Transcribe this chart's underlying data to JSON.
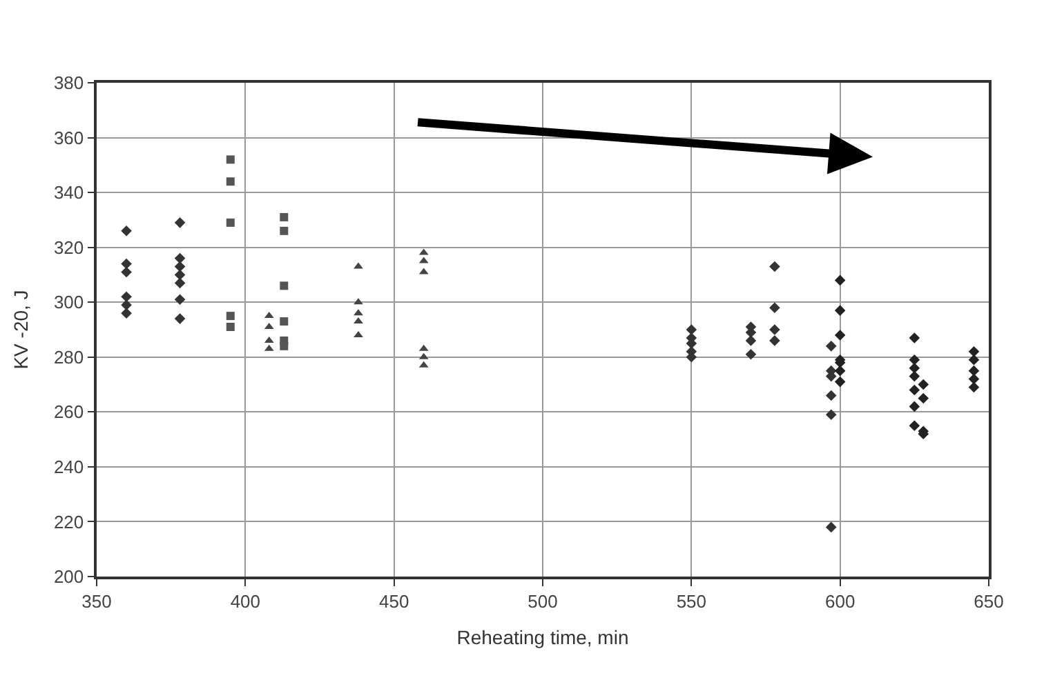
{
  "chart_data": {
    "type": "scatter",
    "xlabel": "Reheating time, min",
    "ylabel": "KV -20, J",
    "xlim": [
      350,
      650
    ],
    "xticks": [
      350,
      400,
      450,
      500,
      550,
      600,
      650
    ],
    "ylim": [
      200,
      380
    ],
    "yticks": [
      200,
      220,
      240,
      260,
      280,
      300,
      320,
      340,
      360,
      380
    ],
    "grid": true,
    "series": [
      {
        "color": "#333333",
        "marker": "diamond",
        "x": [
          360,
          360,
          360,
          360,
          360,
          360,
          378,
          378,
          378,
          378,
          378,
          378,
          378,
          550,
          550,
          550,
          550,
          550,
          570,
          570,
          570,
          570,
          578,
          578,
          578,
          578,
          597,
          597,
          597,
          597,
          597,
          597
        ],
        "values": [
          326,
          314,
          311,
          302,
          299,
          296,
          329,
          316,
          313,
          310,
          307,
          301,
          294,
          290,
          287,
          285,
          282,
          280,
          291,
          289,
          286,
          281,
          313,
          298,
          290,
          286,
          284,
          275,
          273,
          266,
          259,
          218
        ]
      },
      {
        "color": "#222222",
        "marker": "diamond",
        "x": [
          600,
          600,
          600,
          600,
          600,
          600,
          600,
          625,
          625,
          625,
          625,
          628,
          625,
          628,
          625,
          625,
          628,
          628,
          645,
          645,
          645,
          645,
          645
        ],
        "values": [
          308,
          297,
          288,
          279,
          278,
          275,
          271,
          287,
          279,
          276,
          273,
          270,
          268,
          265,
          262,
          255,
          253,
          252,
          282,
          279,
          275,
          272,
          269
        ]
      },
      {
        "color": "#555555",
        "marker": "square",
        "x": [
          395,
          395,
          395,
          395,
          395,
          413,
          413,
          413,
          413,
          413,
          413
        ],
        "values": [
          352,
          344,
          329,
          295,
          291,
          331,
          326,
          306,
          293,
          286,
          284
        ]
      },
      {
        "color": "#444444",
        "marker": "triangle",
        "x": [
          408,
          408,
          408,
          408,
          438,
          438,
          438,
          438,
          438,
          460,
          460,
          460,
          460,
          460,
          460
        ],
        "values": [
          295,
          291,
          286,
          283,
          313,
          300,
          296,
          293,
          288,
          318,
          315,
          311,
          283,
          280,
          277
        ]
      }
    ]
  }
}
